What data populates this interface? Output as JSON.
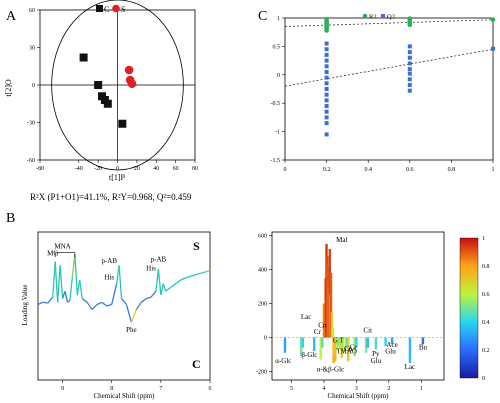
{
  "panel_labels": [
    "A",
    "B",
    "C"
  ],
  "chart_data": [
    {
      "type": "scatter",
      "panel": "A",
      "legend": [
        "C",
        "S"
      ],
      "legend_placement": "top",
      "xlabel": "t[1]P",
      "ylabel": "t[2]O",
      "xticks": [
        -80,
        -40,
        -20,
        0,
        20,
        40,
        60,
        80
      ],
      "xtick_labels": [
        "-80",
        "-40",
        "-20",
        "0",
        "20",
        "40",
        "60",
        "80"
      ],
      "yticks": [
        -60,
        -30,
        0,
        30,
        60
      ],
      "ytick_labels": [
        "-60",
        "-30",
        "0",
        "30",
        "60"
      ],
      "xlim": [
        -80,
        80
      ],
      "ylim": [
        -60,
        60
      ],
      "ellipse_radius": 68,
      "series": [
        {
          "name": "C",
          "marker": "square",
          "color": "#111111",
          "points": [
            [
              -35,
              22
            ],
            [
              -20,
              0
            ],
            [
              -16,
              -9
            ],
            [
              -13,
              -12
            ],
            [
              -10,
              -15
            ],
            [
              5,
              -31
            ]
          ]
        },
        {
          "name": "S",
          "marker": "circle",
          "color": "#e02020",
          "points": [
            [
              12,
              12
            ],
            [
              13,
              4
            ],
            [
              15,
              1
            ]
          ]
        }
      ],
      "stats_text": "R²X (P1+O1)=41.1%, R²Y=0.968, Q²=0.459"
    },
    {
      "type": "scatter",
      "panel": "C",
      "legend": [
        "R2",
        "Q2"
      ],
      "legend_placement": "top",
      "xticks": [
        0,
        0.2,
        0.4,
        0.6,
        0.8,
        1
      ],
      "xtick_labels": [
        "0",
        "0.2",
        "0.4",
        "0.6",
        "0.8",
        "1"
      ],
      "yticks": [
        -1.5,
        -1,
        -0.5,
        0,
        0.5,
        1
      ],
      "ytick_labels": [
        "-1.5",
        "-1",
        "-0.5",
        "0",
        "0.5",
        "1"
      ],
      "xlim": [
        0,
        1
      ],
      "ylim": [
        -1.5,
        1
      ],
      "series": [
        {
          "name": "R2",
          "marker": "circle",
          "color": "#2cae5a",
          "points": [
            [
              0.2,
              0.98
            ],
            [
              0.2,
              0.95
            ],
            [
              0.2,
              0.92
            ],
            [
              0.2,
              0.9
            ],
            [
              0.2,
              0.88
            ],
            [
              0.2,
              0.86
            ],
            [
              0.2,
              0.84
            ],
            [
              0.2,
              0.82
            ],
            [
              0.2,
              0.8
            ],
            [
              0.2,
              0.78
            ],
            [
              0.6,
              0.99
            ],
            [
              0.6,
              0.97
            ],
            [
              0.6,
              0.95
            ],
            [
              0.6,
              0.92
            ],
            [
              0.6,
              0.9
            ],
            [
              0.6,
              0.88
            ],
            [
              1.0,
              0.97
            ]
          ]
        },
        {
          "name": "Q2",
          "marker": "square",
          "color": "#3c6fcf",
          "points": [
            [
              0.2,
              0.55
            ],
            [
              0.2,
              0.45
            ],
            [
              0.2,
              0.35
            ],
            [
              0.2,
              0.25
            ],
            [
              0.2,
              0.15
            ],
            [
              0.2,
              0.05
            ],
            [
              0.2,
              -0.05
            ],
            [
              0.2,
              -0.15
            ],
            [
              0.2,
              -0.25
            ],
            [
              0.2,
              -0.35
            ],
            [
              0.2,
              -0.45
            ],
            [
              0.2,
              -0.55
            ],
            [
              0.2,
              -0.65
            ],
            [
              0.2,
              -0.75
            ],
            [
              0.2,
              -0.85
            ],
            [
              0.2,
              -1.05
            ],
            [
              0.6,
              0.5
            ],
            [
              0.6,
              0.4
            ],
            [
              0.6,
              0.3
            ],
            [
              0.6,
              0.2
            ],
            [
              0.6,
              0.1
            ],
            [
              0.6,
              0.02
            ],
            [
              0.6,
              -0.08
            ],
            [
              0.6,
              -0.18
            ],
            [
              0.6,
              -0.28
            ],
            [
              1.0,
              0.46
            ]
          ]
        }
      ],
      "regression_lines": [
        {
          "series": "R2",
          "x": [
            0,
            1
          ],
          "y": [
            0.85,
            0.97
          ]
        },
        {
          "series": "Q2",
          "x": [
            0,
            1
          ],
          "y": [
            -0.2,
            0.45
          ]
        }
      ]
    },
    {
      "type": "line",
      "panel": "B-left",
      "xlabel": "Chemical Shift (ppm)",
      "ylabel": "Loading Value",
      "xticks": [
        9,
        8,
        7,
        6
      ],
      "xtick_labels": [
        "9",
        "8",
        "7",
        "6"
      ],
      "xlim": [
        9.5,
        6
      ],
      "ylim": [
        -1,
        1
      ],
      "corner_labels": {
        "top_right": "S",
        "bottom_right": "C"
      },
      "x": [
        9.5,
        9.4,
        9.3,
        9.2,
        9.15,
        9.1,
        9.05,
        9.0,
        8.95,
        8.9,
        8.85,
        8.8,
        8.75,
        8.7,
        8.65,
        8.6,
        8.5,
        8.4,
        8.3,
        8.2,
        8.1,
        8.0,
        7.9,
        7.85,
        7.8,
        7.7,
        7.6,
        7.5,
        7.4,
        7.3,
        7.2,
        7.1,
        7.05,
        7.0,
        6.95,
        6.9,
        6.8,
        6.7,
        6.6,
        6.5,
        6.4,
        6.3,
        6.2,
        6.1,
        6.0
      ],
      "values": [
        0.02,
        0.05,
        0.04,
        0.12,
        0.6,
        0.05,
        0.55,
        0.1,
        0.2,
        0.05,
        0.08,
        0.4,
        0.7,
        0.15,
        0.35,
        0.1,
        0.05,
        -0.05,
        0.02,
        0.05,
        0.0,
        0.02,
        0.3,
        0.55,
        0.1,
        0.02,
        -0.22,
        -0.05,
        0.05,
        0.1,
        0.12,
        0.2,
        0.5,
        0.15,
        0.3,
        0.2,
        0.25,
        0.3,
        0.35,
        0.38,
        0.4,
        0.42,
        0.44,
        0.46,
        0.48
      ],
      "annotations": [
        "MNA",
        "MG",
        "p-AB",
        "His",
        "p-AB",
        "His",
        "Phe"
      ]
    },
    {
      "type": "bar",
      "panel": "B-right",
      "xlabel": "Chemical Shift (ppm)",
      "xticks": [
        5,
        4,
        3,
        2,
        1
      ],
      "xtick_labels": [
        "5",
        "4",
        "3",
        "2",
        "1"
      ],
      "yticks": [
        -200,
        0,
        200,
        400,
        600
      ],
      "ytick_labels": [
        "-200",
        "0",
        "200",
        "400",
        "600"
      ],
      "xlim": [
        5.6,
        0.3
      ],
      "ylim": [
        -250,
        620
      ],
      "colorbar": {
        "min": 0,
        "max": 1,
        "ticks": [
          "0",
          "0.2",
          "0.4",
          "0.6",
          "0.8",
          "1"
        ]
      },
      "x": [
        5.2,
        4.7,
        4.65,
        4.3,
        4.1,
        4.05,
        4.0,
        3.95,
        3.92,
        3.9,
        3.87,
        3.85,
        3.82,
        3.8,
        3.78,
        3.75,
        3.72,
        3.7,
        3.68,
        3.65,
        3.6,
        3.55,
        3.5,
        3.45,
        3.4,
        3.3,
        3.25,
        3.05,
        3.0,
        2.7,
        2.65,
        2.4,
        2.1,
        1.9,
        1.35,
        0.95
      ],
      "values": [
        -90,
        -110,
        -60,
        -80,
        -130,
        -60,
        200,
        350,
        550,
        480,
        420,
        300,
        520,
        250,
        380,
        150,
        60,
        -150,
        -100,
        -140,
        -80,
        -50,
        -60,
        -120,
        -90,
        -60,
        -140,
        -110,
        -60,
        -90,
        -60,
        -70,
        -50,
        -40,
        -150,
        -40
      ],
      "colors": [
        0.3,
        0.5,
        0.4,
        0.35,
        0.6,
        0.45,
        0.85,
        0.9,
        0.95,
        0.92,
        0.9,
        0.85,
        0.93,
        0.8,
        0.9,
        0.7,
        0.6,
        0.8,
        0.65,
        0.75,
        0.6,
        0.5,
        0.55,
        0.7,
        0.6,
        0.45,
        0.7,
        0.55,
        0.4,
        0.5,
        0.35,
        0.45,
        0.4,
        0.3,
        0.35,
        0.2
      ],
      "annotations": [
        "Mal",
        "Lac",
        "Cn",
        "Cr",
        "G",
        "T",
        "TMAO",
        "Cr",
        "Cn",
        "Cit",
        "Py",
        "Glu",
        "Ace",
        "Glu",
        "Bu",
        "Lac",
        "α-Glc",
        "β-Glc",
        "α-&β-Glc"
      ]
    }
  ]
}
